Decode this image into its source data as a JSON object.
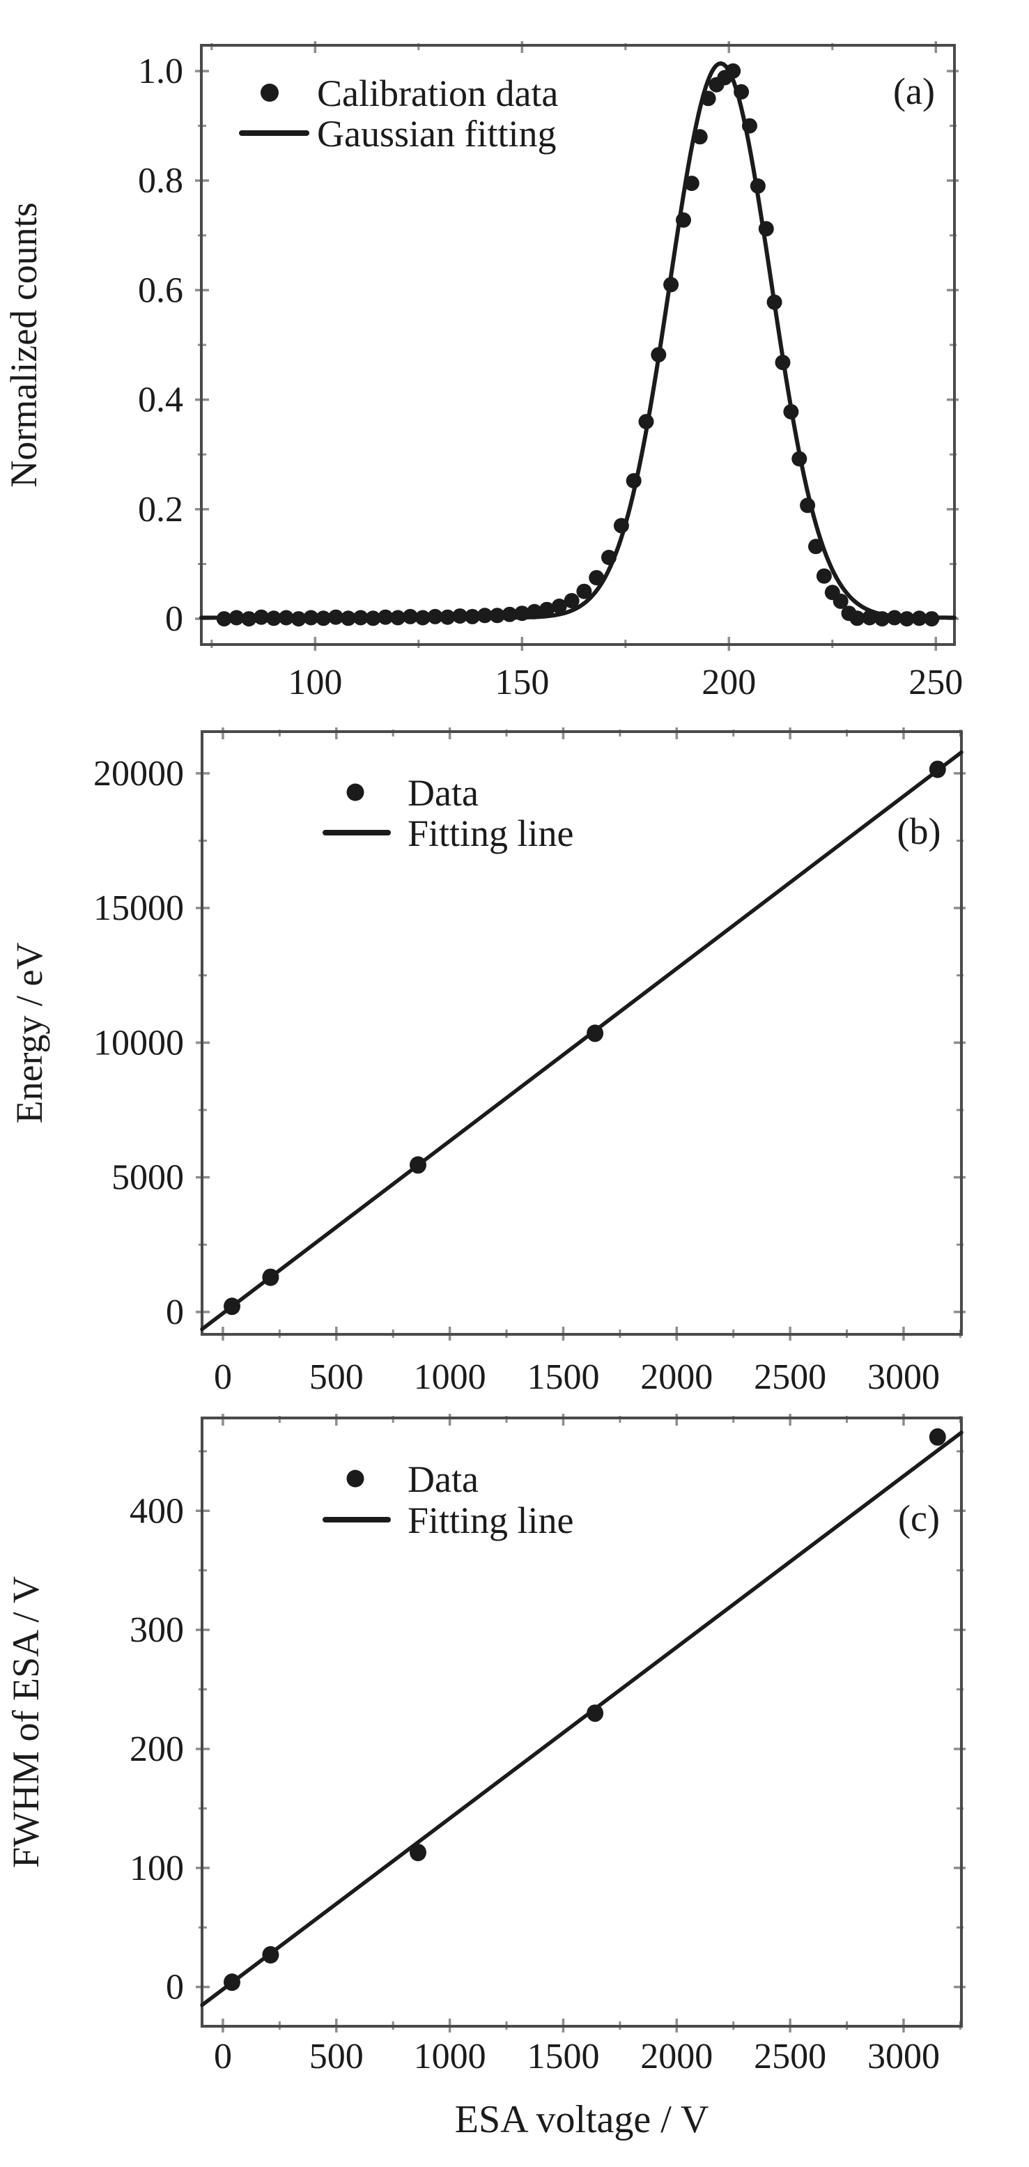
{
  "figure": {
    "background": "#ffffff",
    "ink": "#1b1b1b",
    "frame": "#4a4a4a",
    "tick_color": "#8d8d8d",
    "shared_xlabel": "ESA voltage / V"
  },
  "chart_data": [
    {
      "id": "a",
      "type": "scatter",
      "panel_label": "(a)",
      "xlabel": "",
      "ylabel": "Normalized counts",
      "xlim": [
        72.5,
        254.5
      ],
      "ylim": [
        -0.047,
        1.047
      ],
      "grid": false,
      "legend_position": "top-left",
      "xticks": {
        "values": [
          100,
          150,
          200,
          250
        ],
        "labels": [
          "100",
          "150",
          "200",
          "250"
        ],
        "minor": [
          75,
          125,
          175,
          225
        ]
      },
      "yticks": {
        "values": [
          0,
          0.2,
          0.4,
          0.6,
          0.8,
          1.0
        ],
        "labels": [
          "0",
          "0.2",
          "0.4",
          "0.6",
          "0.8",
          "1.0"
        ],
        "minor": [
          0.1,
          0.3,
          0.5,
          0.7,
          0.9
        ]
      },
      "legend": [
        {
          "marker": "dot",
          "label": "Calibration data"
        },
        {
          "marker": "line",
          "label": "Gaussian fitting"
        }
      ],
      "series": [
        {
          "name": "Calibration data",
          "kind": "points",
          "points": [
            [
              78,
              0
            ],
            [
              81,
              0.002
            ],
            [
              84,
              0
            ],
            [
              87,
              0.003
            ],
            [
              90,
              0.001
            ],
            [
              93,
              0.002
            ],
            [
              96,
              0
            ],
            [
              99,
              0.002
            ],
            [
              102,
              0.001
            ],
            [
              105,
              0.003
            ],
            [
              108,
              0.001
            ],
            [
              111,
              0.002
            ],
            [
              114,
              0.001
            ],
            [
              117,
              0.003
            ],
            [
              120,
              0.002
            ],
            [
              123,
              0.004
            ],
            [
              126,
              0.002
            ],
            [
              129,
              0.004
            ],
            [
              132,
              0.003
            ],
            [
              135,
              0.005
            ],
            [
              138,
              0.004
            ],
            [
              141,
              0.006
            ],
            [
              144,
              0.006
            ],
            [
              147,
              0.008
            ],
            [
              150,
              0.01
            ],
            [
              153,
              0.013
            ],
            [
              156,
              0.017
            ],
            [
              159,
              0.023
            ],
            [
              162,
              0.033
            ],
            [
              165,
              0.05
            ],
            [
              168,
              0.075
            ],
            [
              171,
              0.112
            ],
            [
              174,
              0.17
            ],
            [
              177,
              0.252
            ],
            [
              180,
              0.36
            ],
            [
              183,
              0.482
            ],
            [
              186,
              0.61
            ],
            [
              189,
              0.728
            ],
            [
              191,
              0.795
            ],
            [
              193,
              0.88
            ],
            [
              195,
              0.95
            ],
            [
              197,
              0.975
            ],
            [
              199,
              0.988
            ],
            [
              201,
              1.0
            ],
            [
              203,
              0.962
            ],
            [
              205,
              0.9
            ],
            [
              207,
              0.79
            ],
            [
              209,
              0.712
            ],
            [
              211,
              0.578
            ],
            [
              213,
              0.468
            ],
            [
              215,
              0.378
            ],
            [
              217,
              0.292
            ],
            [
              219,
              0.207
            ],
            [
              221,
              0.132
            ],
            [
              223,
              0.078
            ],
            [
              225,
              0.048
            ],
            [
              227,
              0.032
            ],
            [
              229,
              0.01
            ],
            [
              231,
              0.001
            ],
            [
              234,
              0.002
            ],
            [
              237,
              0
            ],
            [
              240,
              0.002
            ],
            [
              243,
              0
            ],
            [
              246,
              0.001
            ],
            [
              249,
              0
            ]
          ]
        },
        {
          "name": "Gaussian fitting",
          "kind": "gaussian",
          "center": 198,
          "sigma": 12.2,
          "amplitude": 1.012,
          "baseline": 0.002
        }
      ]
    },
    {
      "id": "b",
      "type": "scatter",
      "panel_label": "(b)",
      "xlabel": "",
      "ylabel": "Energy / eV",
      "xlim": [
        -92,
        3255
      ],
      "ylim": [
        -830,
        21550
      ],
      "grid": false,
      "legend_position": "top-left",
      "xticks": {
        "values": [
          0,
          500,
          1000,
          1500,
          2000,
          2500,
          3000
        ],
        "labels": [
          "0",
          "500",
          "1000",
          "1500",
          "2000",
          "2500",
          "3000"
        ],
        "minor": [
          250,
          750,
          1250,
          1750,
          2250,
          2750,
          3250
        ]
      },
      "yticks": {
        "values": [
          0,
          5000,
          10000,
          15000,
          20000
        ],
        "labels": [
          "0",
          "5000",
          "10000",
          "15000",
          "20000"
        ],
        "minor": [
          2500,
          7500,
          12500,
          17500
        ]
      },
      "legend": [
        {
          "marker": "dot",
          "label": "Data"
        },
        {
          "marker": "line",
          "label": "Fitting line"
        }
      ],
      "series": [
        {
          "name": "Data",
          "kind": "points",
          "points": [
            [
              40,
              210
            ],
            [
              210,
              1290
            ],
            [
              860,
              5460
            ],
            [
              1640,
              10350
            ],
            [
              3150,
              20150
            ]
          ]
        },
        {
          "name": "Fitting line",
          "kind": "line",
          "slope": 6.4,
          "intercept": -50
        }
      ]
    },
    {
      "id": "c",
      "type": "scatter",
      "panel_label": "(c)",
      "xlabel": "ESA voltage / V",
      "ylabel": "FWHM of ESA / V",
      "xlim": [
        -92,
        3255
      ],
      "ylim": [
        -33,
        478
      ],
      "grid": false,
      "legend_position": "top-left",
      "xticks": {
        "values": [
          0,
          500,
          1000,
          1500,
          2000,
          2500,
          3000
        ],
        "labels": [
          "0",
          "500",
          "1000",
          "1500",
          "2000",
          "2500",
          "3000"
        ],
        "minor": [
          250,
          750,
          1250,
          1750,
          2250,
          2750,
          3250
        ]
      },
      "yticks": {
        "values": [
          0,
          100,
          200,
          300,
          400
        ],
        "labels": [
          "0",
          "100",
          "200",
          "300",
          "400"
        ],
        "minor": [
          50,
          150,
          250,
          350,
          450
        ]
      },
      "legend": [
        {
          "marker": "dot",
          "label": "Data"
        },
        {
          "marker": "line",
          "label": "Fitting line"
        }
      ],
      "series": [
        {
          "name": "Data",
          "kind": "points",
          "points": [
            [
              40,
              4
            ],
            [
              210,
              27
            ],
            [
              860,
              113
            ],
            [
              1640,
              230
            ],
            [
              3150,
              462
            ]
          ]
        },
        {
          "name": "Fitting line",
          "kind": "line",
          "slope": 0.1437,
          "intercept": -2
        }
      ]
    }
  ]
}
